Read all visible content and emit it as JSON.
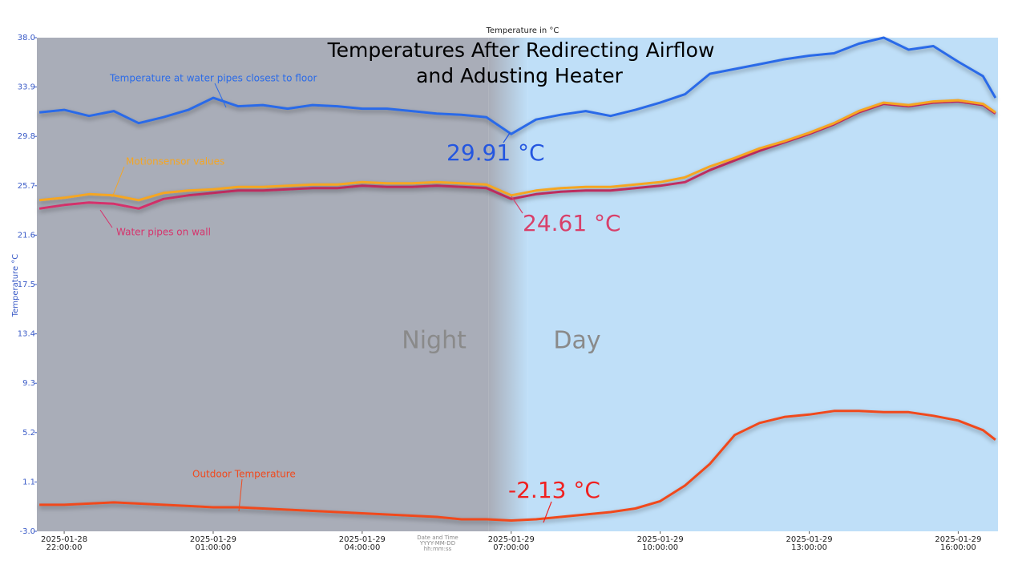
{
  "chart_data": {
    "type": "line",
    "title": [
      "Temperatures After Redirecting Airflow",
      "and Adusting Heater"
    ],
    "subtitle": "Temperature in °C",
    "y_label": "Temperature °C",
    "x_label": [
      "Date and Time",
      "YYYY-MM-DD",
      "hh:mm:ss"
    ],
    "x": [
      "2025-01-28T21:30:00",
      "2025-01-28T22:00:00",
      "2025-01-28T22:30:00",
      "2025-01-28T23:00:00",
      "2025-01-28T23:30:00",
      "2025-01-29T00:00:00",
      "2025-01-29T00:30:00",
      "2025-01-29T01:00:00",
      "2025-01-29T01:30:00",
      "2025-01-29T02:00:00",
      "2025-01-29T02:30:00",
      "2025-01-29T03:00:00",
      "2025-01-29T03:30:00",
      "2025-01-29T04:00:00",
      "2025-01-29T04:30:00",
      "2025-01-29T05:00:00",
      "2025-01-29T05:30:00",
      "2025-01-29T06:00:00",
      "2025-01-29T06:30:00",
      "2025-01-29T07:00:00",
      "2025-01-29T07:30:00",
      "2025-01-29T08:00:00",
      "2025-01-29T08:30:00",
      "2025-01-29T09:00:00",
      "2025-01-29T09:30:00",
      "2025-01-29T10:00:00",
      "2025-01-29T10:30:00",
      "2025-01-29T11:00:00",
      "2025-01-29T11:30:00",
      "2025-01-29T12:00:00",
      "2025-01-29T12:30:00",
      "2025-01-29T13:00:00",
      "2025-01-29T13:30:00",
      "2025-01-29T14:00:00",
      "2025-01-29T14:30:00",
      "2025-01-29T15:00:00",
      "2025-01-29T15:30:00",
      "2025-01-29T16:00:00",
      "2025-01-29T16:30:00",
      "2025-01-29T16:45:00"
    ],
    "series": [
      {
        "name": "Temperature at water pipes closest to floor",
        "color": "#2b6be8",
        "values": [
          31.8,
          32.0,
          31.5,
          31.9,
          30.9,
          31.4,
          32.0,
          33.0,
          32.3,
          32.4,
          32.1,
          32.4,
          32.3,
          32.1,
          32.1,
          31.9,
          31.7,
          31.6,
          31.4,
          30.0,
          31.2,
          31.6,
          31.9,
          31.5,
          32.0,
          32.6,
          33.3,
          35.0,
          35.4,
          35.8,
          36.2,
          36.5,
          36.7,
          37.5,
          38.0,
          37.0,
          37.3,
          36.0,
          34.8,
          33.0
        ]
      },
      {
        "name": "Water pipes on wall",
        "color": "#d6336c",
        "values": [
          23.8,
          24.1,
          24.3,
          24.2,
          23.8,
          24.6,
          24.9,
          25.1,
          25.3,
          25.3,
          25.4,
          25.5,
          25.5,
          25.7,
          25.6,
          25.6,
          25.7,
          25.6,
          25.5,
          24.6,
          25.0,
          25.2,
          25.3,
          25.3,
          25.5,
          25.7,
          26.0,
          27.0,
          27.8,
          28.6,
          29.3,
          30.0,
          30.8,
          31.8,
          32.5,
          32.3,
          32.6,
          32.7,
          32.4,
          31.7
        ]
      },
      {
        "name": "Motionsensor values",
        "color": "#f5a623",
        "values": [
          24.5,
          24.7,
          25.0,
          24.9,
          24.5,
          25.1,
          25.3,
          25.4,
          25.6,
          25.6,
          25.7,
          25.8,
          25.8,
          26.0,
          25.9,
          25.9,
          26.0,
          25.9,
          25.8,
          24.9,
          25.3,
          25.5,
          25.6,
          25.6,
          25.8,
          26.0,
          26.4,
          27.3,
          28.0,
          28.8,
          29.4,
          30.1,
          30.9,
          31.9,
          32.6,
          32.4,
          32.7,
          32.8,
          32.5,
          31.8
        ]
      },
      {
        "name": "Outdoor Temperature",
        "color": "#f04a1e",
        "values": [
          -0.8,
          -0.8,
          -0.7,
          -0.6,
          -0.7,
          -0.8,
          -0.9,
          -1.0,
          -1.0,
          -1.1,
          -1.2,
          -1.3,
          -1.4,
          -1.5,
          -1.6,
          -1.7,
          -1.8,
          -2.0,
          -2.0,
          -2.1,
          -2.0,
          -1.8,
          -1.6,
          -1.4,
          -1.1,
          -0.5,
          0.8,
          2.6,
          5.0,
          6.0,
          6.5,
          6.7,
          7.0,
          7.0,
          6.9,
          6.9,
          6.6,
          6.2,
          5.4,
          4.6
        ]
      }
    ],
    "annotations": [
      {
        "text": "29.91 °C",
        "color": "#2456e0"
      },
      {
        "text": "24.61 °C",
        "color": "#d8406a"
      },
      {
        "text": "-2.13 °C",
        "color": "#f02020"
      }
    ],
    "regions": [
      {
        "label": "Night",
        "start": "2025-01-28T21:27:00",
        "end": "2025-01-29T06:33:00",
        "color": "#a9adb8"
      },
      {
        "label": "Day",
        "start": "2025-01-29T07:20:00",
        "end": "2025-01-29T16:48:00",
        "color": "#bfdff8"
      }
    ],
    "xlim": [
      "2025-01-28T21:27:00",
      "2025-01-29T16:48:00"
    ],
    "xticks": [
      {
        "value": "2025-01-28T22:00:00",
        "label": [
          "2025-01-28",
          "22:00:00"
        ]
      },
      {
        "value": "2025-01-29T01:00:00",
        "label": [
          "2025-01-29",
          "01:00:00"
        ]
      },
      {
        "value": "2025-01-29T04:00:00",
        "label": [
          "2025-01-29",
          "04:00:00"
        ]
      },
      {
        "value": "2025-01-29T07:00:00",
        "label": [
          "2025-01-29",
          "07:00:00"
        ]
      },
      {
        "value": "2025-01-29T10:00:00",
        "label": [
          "2025-01-29",
          "10:00:00"
        ]
      },
      {
        "value": "2025-01-29T13:00:00",
        "label": [
          "2025-01-29",
          "13:00:00"
        ]
      },
      {
        "value": "2025-01-29T16:00:00",
        "label": [
          "2025-01-29",
          "16:00:00"
        ]
      }
    ],
    "ylim": [
      -3,
      38
    ],
    "yticks": [
      {
        "value": -3,
        "label": "-3.0"
      },
      1.1,
      5.2,
      9.3,
      13.4,
      17.5,
      21.6,
      25.7,
      29.8,
      33.9,
      {
        "value": 38,
        "label": "38.0"
      }
    ]
  }
}
